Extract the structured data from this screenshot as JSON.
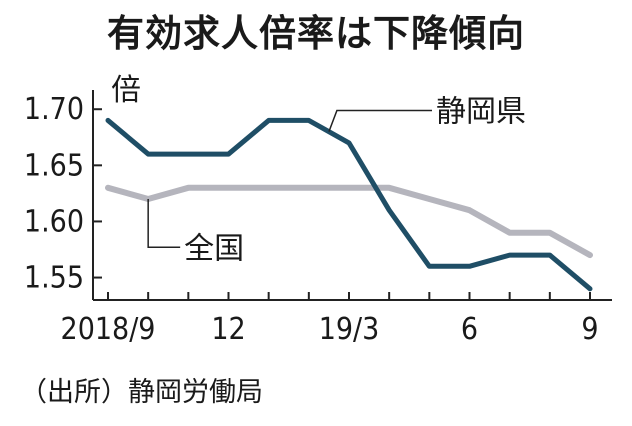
{
  "title": "有効求人倍率は下降傾向",
  "source": "（出所）静岡労働局",
  "chart_data": {
    "type": "line",
    "title": "有効求人倍率は下降傾向",
    "ylabel": "倍",
    "xlabel": "",
    "x": [
      "2018/9",
      "2018/10",
      "2018/11",
      "2018/12",
      "2019/1",
      "2019/2",
      "2019/3",
      "2019/4",
      "2019/5",
      "2019/6",
      "2019/7",
      "2019/8",
      "2019/9"
    ],
    "x_tick_labels": [
      {
        "index": 0,
        "label": "2018/9"
      },
      {
        "index": 3,
        "label": "12"
      },
      {
        "index": 6,
        "label": "19/3"
      },
      {
        "index": 9,
        "label": "6"
      },
      {
        "index": 12,
        "label": "9"
      }
    ],
    "y_ticks": [
      1.55,
      1.6,
      1.65,
      1.7
    ],
    "y_tick_labels": [
      "1.55",
      "1.60",
      "1.65",
      "1.70"
    ],
    "ylim": [
      1.53,
      1.71
    ],
    "grid": false,
    "series": [
      {
        "name": "静岡県",
        "color": "#1f4e66",
        "values": [
          1.69,
          1.66,
          1.66,
          1.66,
          1.69,
          1.69,
          1.67,
          1.61,
          1.56,
          1.56,
          1.57,
          1.57,
          1.54
        ]
      },
      {
        "name": "全国",
        "color": "#b5b5bd",
        "values": [
          1.63,
          1.62,
          1.63,
          1.63,
          1.63,
          1.63,
          1.63,
          1.63,
          1.62,
          1.61,
          1.59,
          1.59,
          1.57
        ]
      }
    ]
  }
}
